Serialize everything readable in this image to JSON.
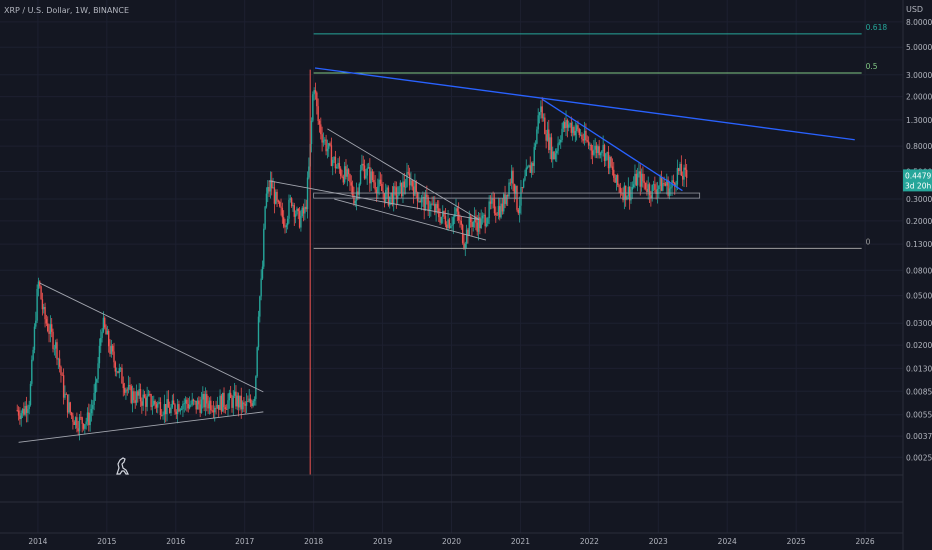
{
  "header": {
    "symbol_line": "XRP / U.S. Dollar, 1W, BINANCE"
  },
  "price_axis": {
    "currency": "USD",
    "current_price": "0.4479",
    "countdown": "3d 20h"
  },
  "colors": {
    "background": "#141722",
    "up_candle": "#26a69a",
    "down_candle": "#ef5350",
    "fib_0618": "#26a69a",
    "fib_05": "#81c784",
    "fib_0": "#9e9e9e",
    "trendline_blue": "#2962ff",
    "trendline_grey": "#a3a6af",
    "vertical_marker": "#ef5350",
    "price_tag": "#26a69a"
  },
  "chart_data": {
    "type": "candlestick",
    "scale": "log",
    "xlabel": "",
    "ylabel": "",
    "ylim": [
      0.0018,
      12.0
    ],
    "xlim": [
      2013.45,
      2026.55
    ],
    "x_ticks": [
      "2014",
      "2015",
      "2016",
      "2017",
      "2018",
      "2019",
      "2020",
      "2021",
      "2022",
      "2023",
      "2024",
      "2025",
      "2026"
    ],
    "x_tick_positions": [
      2014,
      2015,
      2016,
      2017,
      2018,
      2019,
      2020,
      2021,
      2022,
      2023,
      2024,
      2025,
      2026
    ],
    "y_ticks": [
      "8.0000",
      "5.0000",
      "3.0000",
      "2.0000",
      "1.3000",
      "0.8000",
      "0.5000",
      "0.3000",
      "0.2000",
      "0.1300",
      "0.0800",
      "0.0500",
      "0.0300",
      "0.0200",
      "0.0130",
      "0.0085",
      "0.0055",
      "0.0037",
      "0.0025"
    ],
    "y_tick_values": [
      8.0,
      5.0,
      3.0,
      2.0,
      1.3,
      0.8,
      0.5,
      0.3,
      0.2,
      0.13,
      0.08,
      0.05,
      0.03,
      0.02,
      0.013,
      0.0085,
      0.0055,
      0.0037,
      0.0025
    ],
    "price_path": [
      [
        2013.7,
        0.006
      ],
      [
        2013.8,
        0.0058
      ],
      [
        2013.9,
        0.0075
      ],
      [
        2013.95,
        0.018
      ],
      [
        2014.0,
        0.045
      ],
      [
        2014.03,
        0.065
      ],
      [
        2014.1,
        0.035
      ],
      [
        2014.2,
        0.025
      ],
      [
        2014.3,
        0.018
      ],
      [
        2014.4,
        0.008
      ],
      [
        2014.5,
        0.0055
      ],
      [
        2014.6,
        0.0048
      ],
      [
        2014.75,
        0.005
      ],
      [
        2014.85,
        0.008
      ],
      [
        2014.95,
        0.03
      ],
      [
        2015.0,
        0.025
      ],
      [
        2015.1,
        0.016
      ],
      [
        2015.2,
        0.012
      ],
      [
        2015.35,
        0.008
      ],
      [
        2015.5,
        0.0075
      ],
      [
        2015.65,
        0.007
      ],
      [
        2015.8,
        0.0065
      ],
      [
        2015.95,
        0.006
      ],
      [
        2016.1,
        0.007
      ],
      [
        2016.3,
        0.0065
      ],
      [
        2016.45,
        0.007
      ],
      [
        2016.6,
        0.0068
      ],
      [
        2016.75,
        0.007
      ],
      [
        2016.9,
        0.0072
      ],
      [
        2017.0,
        0.0062
      ],
      [
        2017.1,
        0.0068
      ],
      [
        2017.17,
        0.0085
      ],
      [
        2017.22,
        0.04
      ],
      [
        2017.27,
        0.07
      ],
      [
        2017.32,
        0.3
      ],
      [
        2017.4,
        0.4
      ],
      [
        2017.5,
        0.25
      ],
      [
        2017.6,
        0.2
      ],
      [
        2017.7,
        0.3
      ],
      [
        2017.8,
        0.2
      ],
      [
        2017.9,
        0.24
      ],
      [
        2017.96,
        0.6
      ],
      [
        2018.02,
        2.8
      ],
      [
        2018.08,
        1.3
      ],
      [
        2018.15,
        0.95
      ],
      [
        2018.25,
        0.7
      ],
      [
        2018.35,
        0.55
      ],
      [
        2018.5,
        0.45
      ],
      [
        2018.62,
        0.3
      ],
      [
        2018.72,
        0.55
      ],
      [
        2018.85,
        0.45
      ],
      [
        2019.0,
        0.35
      ],
      [
        2019.1,
        0.31
      ],
      [
        2019.25,
        0.33
      ],
      [
        2019.4,
        0.45
      ],
      [
        2019.5,
        0.35
      ],
      [
        2019.6,
        0.28
      ],
      [
        2019.7,
        0.27
      ],
      [
        2019.85,
        0.22
      ],
      [
        2020.0,
        0.2
      ],
      [
        2020.1,
        0.23
      ],
      [
        2020.2,
        0.14
      ],
      [
        2020.3,
        0.2
      ],
      [
        2020.45,
        0.19
      ],
      [
        2020.6,
        0.26
      ],
      [
        2020.75,
        0.25
      ],
      [
        2020.9,
        0.5
      ],
      [
        2020.98,
        0.25
      ],
      [
        2021.1,
        0.45
      ],
      [
        2021.2,
        0.6
      ],
      [
        2021.3,
        1.7
      ],
      [
        2021.38,
        1.1
      ],
      [
        2021.5,
        0.65
      ],
      [
        2021.62,
        1.1
      ],
      [
        2021.72,
        1.2
      ],
      [
        2021.85,
        1.05
      ],
      [
        2021.98,
        0.85
      ],
      [
        2022.1,
        0.75
      ],
      [
        2022.2,
        0.8
      ],
      [
        2022.3,
        0.6
      ],
      [
        2022.4,
        0.4
      ],
      [
        2022.5,
        0.35
      ],
      [
        2022.6,
        0.34
      ],
      [
        2022.72,
        0.45
      ],
      [
        2022.82,
        0.4
      ],
      [
        2022.92,
        0.35
      ],
      [
        2023.0,
        0.38
      ],
      [
        2023.1,
        0.4
      ],
      [
        2023.2,
        0.36
      ],
      [
        2023.3,
        0.5
      ],
      [
        2023.36,
        0.47
      ],
      [
        2023.42,
        0.45
      ]
    ],
    "fib_levels": [
      {
        "label": "0.618",
        "value": 6.4,
        "from": 2018.0,
        "to": 2025.95
      },
      {
        "label": "0.5",
        "value": 3.1,
        "from": 2018.0,
        "to": 2025.95
      },
      {
        "label": "0",
        "value": 0.12,
        "from": 2018.0,
        "to": 2025.95
      }
    ],
    "trendlines": [
      {
        "kind": "blue",
        "points": [
          [
            2018.02,
            3.4
          ],
          [
            2025.85,
            0.9
          ]
        ]
      },
      {
        "kind": "blue",
        "points": [
          [
            2021.32,
            1.9
          ],
          [
            2023.35,
            0.35
          ]
        ]
      },
      {
        "kind": "grey",
        "points": [
          [
            2014.03,
            0.063
          ],
          [
            2017.27,
            0.0084
          ]
        ]
      },
      {
        "kind": "grey",
        "points": [
          [
            2013.72,
            0.0033
          ],
          [
            2017.27,
            0.0058
          ]
        ]
      },
      {
        "kind": "grey",
        "points": [
          [
            2017.35,
            0.42
          ],
          [
            2020.4,
            0.205
          ]
        ]
      },
      {
        "kind": "grey",
        "points": [
          [
            2018.2,
            1.1
          ],
          [
            2020.4,
            0.205
          ]
        ]
      },
      {
        "kind": "grey",
        "points": [
          [
            2018.3,
            0.3
          ],
          [
            2020.5,
            0.14
          ]
        ]
      }
    ],
    "support_zone": {
      "from": 2018.0,
      "to": 2023.6,
      "top": 0.335,
      "bottom": 0.305
    },
    "vertical_marker_x": 2017.95
  }
}
